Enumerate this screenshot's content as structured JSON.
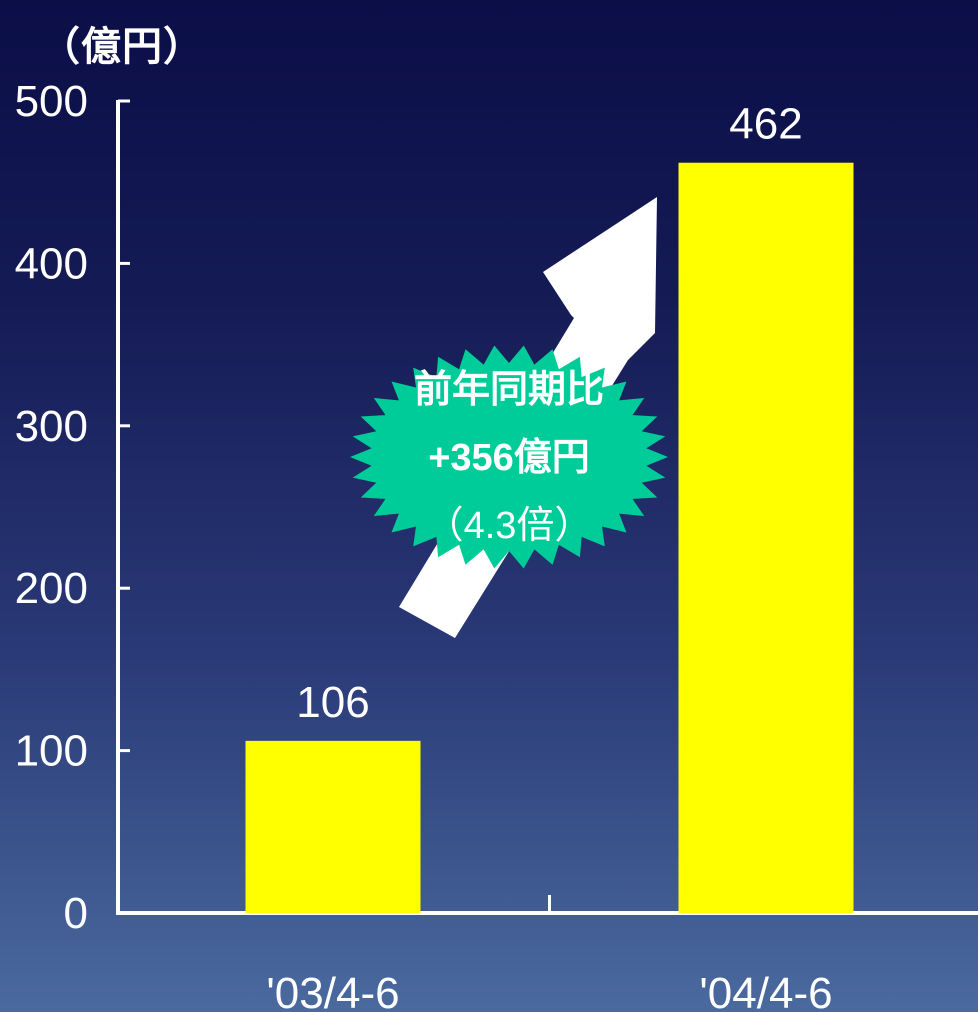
{
  "chart_data": {
    "type": "bar",
    "unit_label": "（億円）",
    "categories": [
      "'03/4-6",
      "'04/4-6"
    ],
    "values": [
      106,
      462
    ],
    "data_labels": [
      "106",
      "462"
    ],
    "ylim": [
      0,
      500
    ],
    "yticks": [
      0,
      100,
      200,
      300,
      400,
      500
    ],
    "bar_color": "#ffff00",
    "grid": false,
    "annotation": {
      "line1": "前年同期比",
      "line2": "+356億円",
      "line3": "（4.3倍）",
      "badge_color": "#00cc99",
      "arrow_color": "#ffffff"
    }
  }
}
